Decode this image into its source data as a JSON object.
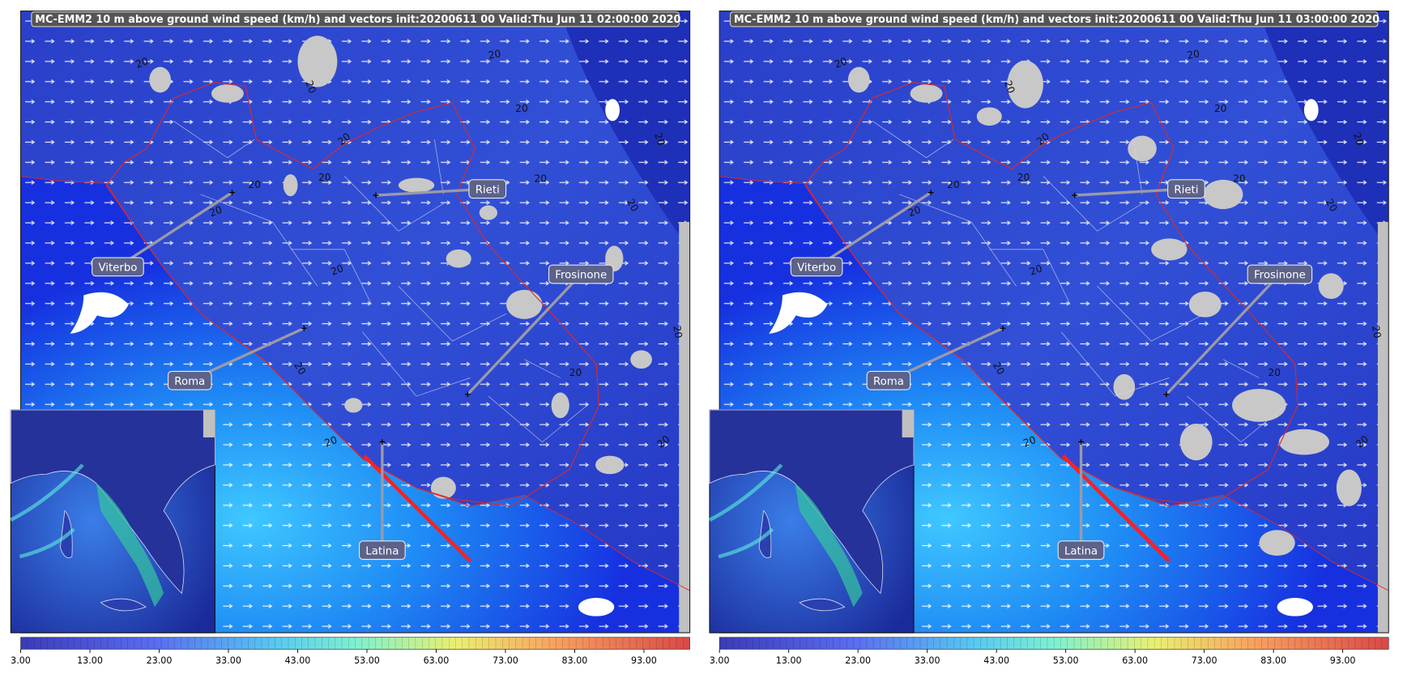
{
  "panels": [
    {
      "title": "MC-EMM2 10 m above ground wind speed (km/h) and vectors init:20200611 00  Valid:Thu Jun 11 02:00:00 2020",
      "cities": [
        "Viterbo",
        "Rieti",
        "Frosinone",
        "Roma",
        "Latina"
      ],
      "contour_label": "20",
      "colorbar_ticks": [
        "3.00",
        "13.00",
        "23.00",
        "33.00",
        "43.00",
        "53.00",
        "63.00",
        "73.00",
        "83.00",
        "93.00"
      ]
    },
    {
      "title": "MC-EMM2 10 m above ground wind speed (km/h) and vectors init:20200611 00  Valid:Thu Jun 11 03:00:00 2020",
      "cities": [
        "Viterbo",
        "Rieti",
        "Frosinone",
        "Roma",
        "Latina"
      ],
      "contour_label": "20",
      "colorbar_ticks": [
        "3.00",
        "13.00",
        "23.00",
        "33.00",
        "43.00",
        "53.00",
        "63.00",
        "73.00",
        "83.00",
        "93.00"
      ]
    }
  ]
}
